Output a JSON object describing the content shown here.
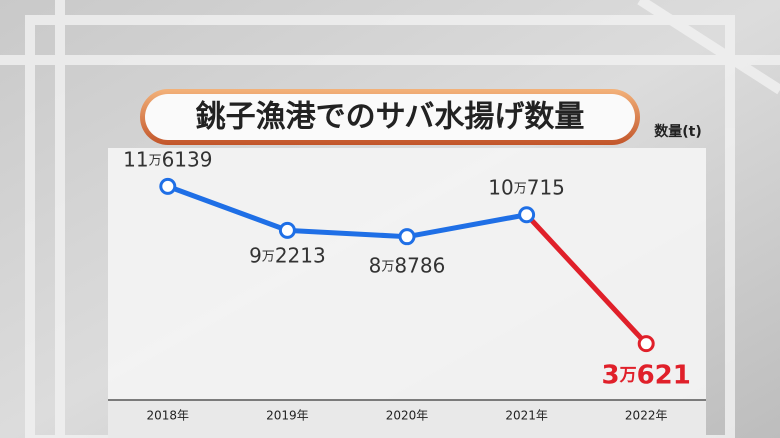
{
  "chart_data": {
    "type": "line",
    "title": "銚子漁港でのサバ水揚げ数量",
    "y_label": "数量(t)",
    "categories": [
      "2018年",
      "2019年",
      "2020年",
      "2021年",
      "2022年"
    ],
    "series": [
      {
        "color": "#1f6fe6",
        "values": [
          116139,
          92213,
          88786,
          100715,
          30621
        ],
        "value_labels": [
          "11万6139",
          "9万2213",
          "8万8786",
          "10万715",
          "3万621"
        ],
        "point_colors": [
          "#1f6fe6",
          "#1f6fe6",
          "#1f6fe6",
          "#1f6fe6",
          "#e0202a"
        ],
        "label_colors": [
          "#333333",
          "#333333",
          "#333333",
          "#333333",
          "#e0202a"
        ]
      }
    ],
    "ylim": [
      0,
      137000
    ]
  }
}
